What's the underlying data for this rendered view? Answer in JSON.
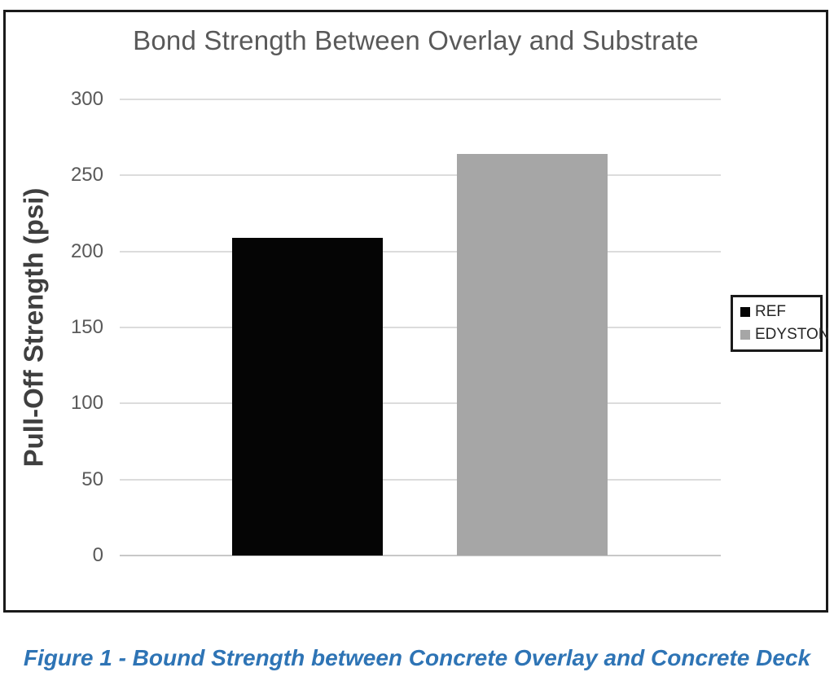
{
  "chart_data": {
    "type": "bar",
    "title": "Bond Strength Between Overlay and Substrate",
    "ylabel": "Pull-Off Strength (psi)",
    "xlabel": "",
    "categories": [
      ""
    ],
    "series": [
      {
        "name": "REF",
        "values": [
          209
        ],
        "color": "#050505"
      },
      {
        "name": "EDYSTON",
        "values": [
          264
        ],
        "color": "#a6a6a6"
      }
    ],
    "ylim": [
      0,
      300
    ],
    "yticks": [
      0,
      50,
      100,
      150,
      200,
      250,
      300
    ],
    "grid": true,
    "legend_position": "right",
    "colors": {
      "gridline": "#dcdcdc",
      "axis_text": "#595959",
      "title_text": "#595959",
      "frame_border": "#1a1a1a"
    }
  },
  "figure": {
    "caption": "Figure 1 - Bound Strength between Concrete Overlay and Concrete Deck",
    "caption_color": "#2e74b5"
  }
}
